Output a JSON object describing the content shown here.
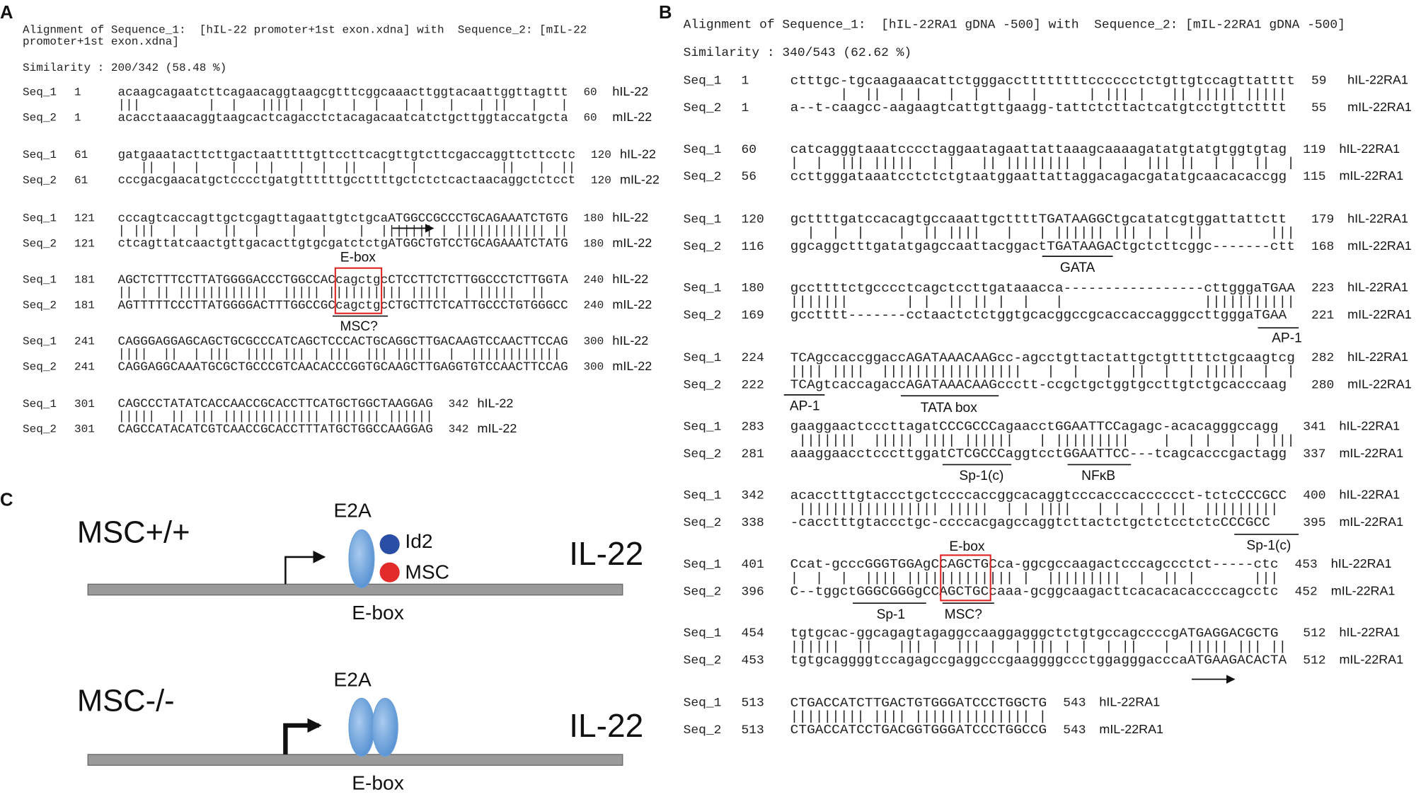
{
  "panel_a": {
    "label": "A",
    "header": [
      "Alignment of Sequence_1:  [hIL-22 promoter+1st exon.xdna] with  Sequence_2: [mIL-22",
      "promoter+1st exon.xdna]"
    ],
    "similarity": "Similarity : 200/342 (58.48 %)",
    "blocks": [
      {
        "rows": [
          {
            "label": "Seq_1",
            "start": 1,
            "seq": "acaagcagaatcttcagaacaggtaagcgtttcggcaaacttggtacaattggttagttt",
            "end": 60,
            "name": "hIL-22"
          },
          {
            "label": "Seq_2",
            "start": 1,
            "seq": "acacctaaacaggtaagcactcagacctctacagacaatcatctgcttggtaccatgcta",
            "end": 60,
            "name": "mIL-22"
          }
        ],
        "match": "|||         |  |   |||| |  |   |  |   | |   |   | ||   |   | "
      },
      {
        "rows": [
          {
            "label": "Seq_1",
            "start": 61,
            "seq": "gatgaaatacttcttgactaatttttgttccttcacgttgtcttcgaccaggttcttcctc",
            "end": 120,
            "name": "hIL-22"
          },
          {
            "label": "Seq_2",
            "start": 61,
            "seq": "cccgacgaacatgctcccctgatgttttttgccttttgctctctcactaacaggctctcct",
            "end": 120,
            "name": "mIL-22"
          }
        ],
        "match": "   ||  |  |    |  | |   |  |  ||   |   |           ||   |  ||"
      },
      {
        "rows": [
          {
            "label": "Seq_1",
            "start": 121,
            "seq": "cccagtcaccagttgctcgagttagaattgtctgcaATGGCCGCCCTGCAGAAATCTGTG",
            "end": 180,
            "name": "hIL-22"
          },
          {
            "label": "Seq_2",
            "start": 121,
            "seq": "ctcagttatcaactgttgacacttgtgcgatctctgATGGCTGTCCTGCAGAAATCTATG",
            "end": 180,
            "name": "mIL-22"
          }
        ],
        "match": "| |||  |  |   ||  |    |   |    |  ||||||| | |||||||||||| ||"
      },
      {
        "rows": [
          {
            "label": "Seq_1",
            "start": 181,
            "seq": "AGCTCTTTCCTTATGGGGACCCTGGCCACcagctgcCTCCTTCTCTTGGCCCTCTTGGTA",
            "end": 240,
            "name": "hIL-22"
          },
          {
            "label": "Seq_2",
            "start": 181,
            "seq": "AGTTTTTCCCTTATGGGGACTTTGGCCGCcagctgcCTGCTTCTCATTGCCCTGTGGGCC",
            "end": 240,
            "name": "mIL-22"
          }
        ],
        "match": "|| | || ||||||||||||  ||||| |||||||||| |||||  | |||||  ||   "
      },
      {
        "rows": [
          {
            "label": "Seq_1",
            "start": 241,
            "seq": "CAGGGAGGAGCAGCTGCGCCCATCAGCTCCCACTGCAGGCTTGACAAGTCCAACTTCCAG",
            "end": 300,
            "name": "hIL-22"
          },
          {
            "label": "Seq_2",
            "start": 241,
            "seq": "CAGGAGGCAAATGCGCTGCCCGTCAACACCCGGTGCAAGCTTGAGGTGTCCAACTTCCAG",
            "end": 300,
            "name": "mIL-22"
          }
        ],
        "match": "||||  ||  | |||  |||| ||| | |||  ||| |||||  |  ||||||||||||"
      },
      {
        "rows": [
          {
            "label": "Seq_1",
            "start": 301,
            "seq": "CAGCCCTATATCACCAACCGCACCTTCATGCTGGCTAAGGAG",
            "end": 342,
            "name": "hIL-22"
          },
          {
            "label": "Seq_2",
            "start": 301,
            "seq": "CAGCCATACATCGTCAACCGCACCTTTATGCTGGCCAAGGAG",
            "end": 342,
            "name": "mIL-22"
          }
        ],
        "match": "|||||  || ||| ||||||||||||| ||||||| ||||||"
      }
    ],
    "annotations": [
      "E-box",
      "MSC?"
    ]
  },
  "panel_b": {
    "label": "B",
    "header": [
      "Alignment of Sequence_1:  [hIL-22RA1 gDNA -500] with  Sequence_2: [mIL-22RA1 gDNA -500]"
    ],
    "similarity": "Similarity : 340/543 (62.62 %)",
    "blocks": [
      {
        "rows": [
          {
            "label": "Seq_1",
            "start": 1,
            "seq": "ctttgc-tgcaagaaacattctgggaccttttttttcccccctctgttgtccagttatttt",
            "end": 59,
            "name": "hIL-22RA1"
          },
          {
            "label": "Seq_2",
            "start": 1,
            "seq": "a--t-caagcc-aagaagtcattgttgaagg-tattctcttactcatgtcctgttctttt",
            "end": 55,
            "name": "mIL-22RA1"
          }
        ],
        "match": "      |  ||  | |   |  |   |  |      | ||| |   || ||||| |||||"
      },
      {
        "rows": [
          {
            "label": "Seq_1",
            "start": 60,
            "seq": "catcagggtaaatcccctaggaatagaattattaaagcaaaagatatgtatgtggtgtag",
            "end": 119,
            "name": "hIL-22RA1"
          },
          {
            "label": "Seq_2",
            "start": 56,
            "seq": "ccttgggataaatcctctctgtaatggaattattaggacagacgatatgcaacacaccgg",
            "end": 115,
            "name": "mIL-22RA1"
          }
        ],
        "match": "|  |  ||| |||||  | |   || |||||||| | |  |  ||| ||  | |  ||  |"
      },
      {
        "rows": [
          {
            "label": "Seq_1",
            "start": 120,
            "seq": "gcttttgatccacagtgccaaattgcttttTGATAAGGCtgcatatcgtggattattctt",
            "end": 179,
            "name": "hIL-22RA1"
          },
          {
            "label": "Seq_2",
            "start": 116,
            "seq": "ggcaggctttgatatgagccaattacggactTGATAAGACtgctcttcggc-------ctt",
            "end": 168,
            "name": "mIL-22RA1"
          }
        ],
        "match": "  |  |  |    |  || ||||   |   | |||||| ||| | |  ||        |||"
      },
      {
        "rows": [
          {
            "label": "Seq_1",
            "start": 180,
            "seq": "gccttttctgcccctcagctccttgataaacca-----------------cttgggaTGAA",
            "end": 223,
            "name": "hIL-22RA1"
          },
          {
            "label": "Seq_2",
            "start": 169,
            "seq": "gcctttt-------cctaactctctggtgcacggccgcaccaccagggccttgggaTGAA",
            "end": 221,
            "name": "mIL-22RA1"
          }
        ],
        "match": "|||||||       | |  || || |  |   |                 |||||||||||"
      },
      {
        "rows": [
          {
            "label": "Seq_1",
            "start": 224,
            "seq": "TCAgccaccggaccAGATAAACAAGcc-agcctgttactattgctgtttttctgcaagtcg",
            "end": 282,
            "name": "hIL-22RA1"
          },
          {
            "label": "Seq_2",
            "start": 222,
            "seq": "TCAgtcaccagaccAGATAAACAAGccctt-ccgctgctggtgccttgtctgcacccaag",
            "end": 280,
            "name": "mIL-22RA1"
          }
        ],
        "match": "|||| ||||  |||||||||||||||||   |  |   |  ||  |  | |||||  |  |"
      },
      {
        "rows": [
          {
            "label": "Seq_1",
            "start": 283,
            "seq": "gaaggaactcccttagatCCCGCCCagaacctGGAATTCCagagc-acacagggccagg",
            "end": 341,
            "name": "hIL-22RA1"
          },
          {
            "label": "Seq_2",
            "start": 281,
            "seq": "aaaggaacctcccttggatCTCGCCCaggtcctGGAATTCC---tcagcacccgactagg",
            "end": 337,
            "name": "mIL-22RA1"
          }
        ],
        "match": " |||||||  ||||| |||| ||||||   | |||||||||    |  | |  |  | |||"
      },
      {
        "rows": [
          {
            "label": "Seq_1",
            "start": 342,
            "seq": "acacctttgtaccctgctccccaccggcacaggtcccacccacccccct-tctcCCCGCC",
            "end": 400,
            "name": "hIL-22RA1"
          },
          {
            "label": "Seq_2",
            "start": 338,
            "seq": "-cacctttgtaccctgc-ccccacgagccaggtcttactctgctctcctctcCCCGCC",
            "end": 395,
            "name": "mIL-22RA1"
          }
        ],
        "match": " ||||||||||||||||| |||||  | | ||||   | |  | | ||  |||||||||"
      },
      {
        "rows": [
          {
            "label": "Seq_1",
            "start": 401,
            "seq": "Ccat-gcccGGGTGGAgCCAGCTGCca-ggcgccaagactcccagccctct-----ctc",
            "end": 453,
            "name": "hIL-22RA1"
          },
          {
            "label": "Seq_2",
            "start": 396,
            "seq": "C--tggctGGGCGGGgCCAGCTGCcaaa-gcggcaagacttcacacacaccccagcctc",
            "end": 452,
            "name": "mIL-22RA1"
          }
        ],
        "match": "|  |  |  |||| ||||||||||||| |  |||||||||  |  || |       |||"
      },
      {
        "rows": [
          {
            "label": "Seq_1",
            "start": 454,
            "seq": "tgtgcac-ggcagagtagaggccaaggagggctctgtgccagccccgATGAGGACGCTG",
            "end": 512,
            "name": "hIL-22RA1"
          },
          {
            "label": "Seq_2",
            "start": 453,
            "seq": "tgtgcaggggtccagagccgaggcccgaaggggccctggagggacccaATGAAGACACTA",
            "end": 512,
            "name": "mIL-22RA1"
          }
        ],
        "match": "||||||  ||   ||| |  ||| |  | ||| | |  | ||   |  ||||| ||| ||"
      },
      {
        "rows": [
          {
            "label": "Seq_1",
            "start": 513,
            "seq": "CTGACCATCTTGACTGTGGGATCCCTGGCTG",
            "end": 543,
            "name": "hIL-22RA1"
          },
          {
            "label": "Seq_2",
            "start": 513,
            "seq": "CTGACCATCCTGACGGTGGGATCCCTGGCCG",
            "end": 543,
            "name": "mIL-22RA1"
          }
        ],
        "match": "||||||||| |||| |||||||||||||| |"
      }
    ],
    "annotations": [
      "GATA",
      "AP-1",
      "AP-1",
      "TATA box",
      "Sp-1(c)",
      "NFκB",
      "Sp-1(c)",
      "E-box",
      "Sp-1",
      "MSC?"
    ]
  },
  "panel_c": {
    "label": "C",
    "top": {
      "genotype": "MSC+/+",
      "e2a": "E2A",
      "id2": "Id2",
      "msc": "MSC",
      "gene": "IL-22",
      "ebox": "E-box"
    },
    "bottom": {
      "genotype": "MSC-/-",
      "e2a": "E2A",
      "gene": "IL-22",
      "ebox": "E-box"
    }
  }
}
